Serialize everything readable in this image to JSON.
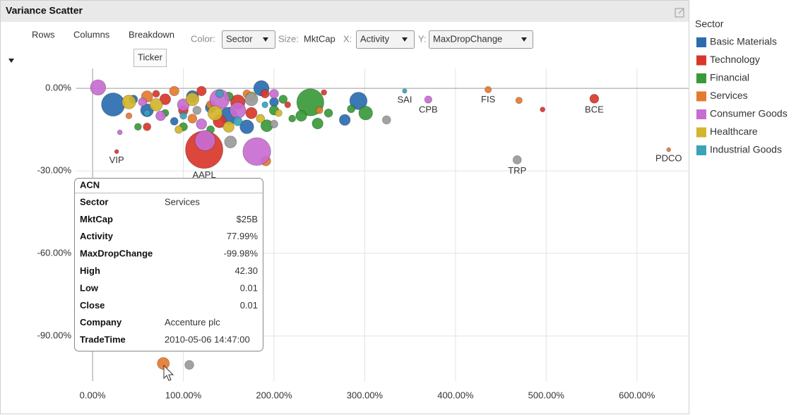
{
  "panel": {
    "title": "Variance Scatter"
  },
  "toolbar": {
    "rows": "Rows",
    "columns": "Columns",
    "breakdown": "Breakdown",
    "breakdown_item": "Ticker",
    "color_label": "Color:",
    "color_value": "Sector",
    "size_label": "Size:",
    "size_value": "MktCap",
    "x_label": "X:",
    "x_value": "Activity",
    "y_label": "Y:",
    "y_value": "MaxDropChange"
  },
  "legend": {
    "title": "Sector"
  },
  "tooltip": {
    "title": "ACN",
    "rows": [
      [
        "Sector",
        "Services"
      ],
      [
        "MktCap",
        "$25B"
      ],
      [
        "Activity",
        "77.99%"
      ],
      [
        "MaxDropChange",
        "-99.98%"
      ],
      [
        "High",
        "42.30"
      ],
      [
        "Low",
        "0.01"
      ],
      [
        "Close",
        "0.01"
      ],
      [
        "Company",
        "Accenture plc"
      ],
      [
        "TradeTime",
        "2010-05-06 14:47:00"
      ]
    ]
  },
  "chart_data": {
    "type": "scatter",
    "xlim": [
      -18,
      657
    ],
    "ylim": [
      -106.4,
      7.2
    ],
    "xticks": [
      {
        "value": 0,
        "label": "0.00%"
      },
      {
        "value": 100,
        "label": "100.00%"
      },
      {
        "value": 200,
        "label": "200.00%"
      },
      {
        "value": 300,
        "label": "300.00%"
      },
      {
        "value": 400,
        "label": "400.00%"
      },
      {
        "value": 500,
        "label": "500.00%"
      },
      {
        "value": 600,
        "label": "600.00%"
      }
    ],
    "yticks": [
      {
        "value": 0,
        "label": "0.00%"
      },
      {
        "value": -30,
        "label": "-30.00%"
      },
      {
        "value": -60,
        "label": "-60.00%"
      },
      {
        "value": -90,
        "label": "-90.00%"
      }
    ],
    "grid": true,
    "series": [
      {
        "name": "Basic Materials",
        "color": "#2b6cb0",
        "x": [
          22.6,
          186,
          293,
          278,
          60,
          110,
          150,
          200,
          130,
          90,
          170,
          45
        ],
        "values": [
          -5.9,
          0,
          -4.6,
          -11.5,
          -8,
          -3,
          -10,
          -5,
          -7,
          -12,
          -14,
          -4
        ],
        "size": [
          115,
          45,
          60,
          20,
          30,
          25,
          60,
          12,
          18,
          8,
          35,
          10
        ],
        "labels": [
          null,
          null,
          null,
          null,
          null,
          null,
          null,
          null,
          null,
          null,
          null,
          null
        ]
      },
      {
        "name": "Technology",
        "color": "#d9372b",
        "x": [
          26.5,
          123,
          553,
          496,
          80,
          100,
          140,
          160,
          60,
          190,
          120,
          215,
          175,
          70,
          255
        ],
        "values": [
          -23,
          -22.3,
          -3.8,
          -7.7,
          -4,
          -8,
          -12,
          -5,
          -14,
          -2,
          -1,
          -6,
          -9,
          -2,
          -1.5
        ],
        "size": [
          1,
          320,
          12,
          2,
          20,
          15,
          30,
          40,
          8,
          10,
          14,
          4,
          22,
          6,
          3
        ],
        "labels": [
          "VIP",
          "AAPL",
          "BCE",
          null,
          null,
          null,
          null,
          null,
          null,
          null,
          null,
          null,
          null,
          null,
          null
        ]
      },
      {
        "name": "Financial",
        "color": "#3a9a3a",
        "x": [
          240,
          248,
          192,
          301,
          285,
          230,
          260,
          210,
          50,
          100,
          150,
          80,
          220,
          200,
          130
        ],
        "values": [
          -5.1,
          -12.8,
          -13.6,
          -9,
          -7.5,
          -10,
          -9,
          -4,
          -14,
          -14,
          -3,
          -9,
          -11,
          -8,
          -15
        ],
        "size": [
          160,
          20,
          25,
          35,
          8,
          20,
          10,
          10,
          6,
          10,
          12,
          7,
          6,
          14,
          8
        ],
        "labels": [
          null,
          null,
          null,
          null,
          null,
          null,
          null,
          null,
          null,
          null,
          null,
          null,
          null,
          null,
          null
        ]
      },
      {
        "name": "Services",
        "color": "#e57a2e",
        "x": [
          77.99,
          436,
          635,
          470,
          191,
          60,
          90,
          130,
          170,
          250,
          110,
          40
        ],
        "values": [
          -99.98,
          -0.5,
          -22.3,
          -4.4,
          -26.4,
          -3,
          -1,
          -6,
          -2,
          -8,
          -11,
          -10
        ],
        "size": [
          25,
          5,
          1,
          5,
          15,
          22,
          14,
          10,
          8,
          6,
          12,
          4
        ],
        "labels": [
          null,
          "FIS",
          "PDCO",
          null,
          null,
          null,
          null,
          null,
          null,
          null,
          null,
          null
        ]
      },
      {
        "name": "Consumer Goods",
        "color": "#c86dd1",
        "x": [
          370,
          6,
          181,
          124,
          140,
          160,
          100,
          75,
          30,
          200,
          120,
          55
        ],
        "values": [
          -4.1,
          0.3,
          -23,
          -19,
          -4,
          -8,
          -6,
          -10,
          -16,
          -2,
          -13,
          -5
        ],
        "size": [
          7,
          45,
          170,
          85,
          80,
          50,
          25,
          15,
          2,
          12,
          18,
          10
        ],
        "labels": [
          "CPB",
          null,
          null,
          null,
          null,
          null,
          null,
          null,
          null,
          null,
          null,
          null
        ]
      },
      {
        "name": "Healthcare",
        "color": "#d4b52d",
        "x": [
          40,
          70,
          110,
          150,
          175,
          95,
          205,
          135,
          185
        ],
        "values": [
          -5,
          -6,
          -4,
          -14,
          -3,
          -15,
          -9,
          -9,
          -11
        ],
        "size": [
          35,
          28,
          30,
          20,
          15,
          8,
          6,
          40,
          10
        ],
        "labels": [
          null,
          null,
          null,
          null,
          null,
          null,
          null,
          null,
          null
        ]
      },
      {
        "name": "Industrial Goods",
        "color": "#3aa3b8",
        "x": [
          344,
          100,
          160,
          60,
          140,
          190
        ],
        "values": [
          -1,
          -10,
          -12,
          -9,
          -2,
          -6
        ],
        "size": [
          1.5,
          6,
          12,
          5,
          8,
          4
        ],
        "labels": [
          "SAI",
          null,
          null,
          null,
          null,
          null
        ]
      },
      {
        "name": null,
        "color": "#9a9a9a",
        "x": [
          468,
          106.6,
          324,
          152,
          175,
          115,
          200
        ],
        "values": [
          -26,
          -100.5,
          -11.5,
          -19.5,
          -4,
          -8,
          -13
        ],
        "size": [
          10,
          12,
          10,
          25,
          30,
          10,
          8
        ],
        "labels": [
          "TRP",
          null,
          null,
          null,
          null,
          null,
          null
        ]
      }
    ]
  }
}
